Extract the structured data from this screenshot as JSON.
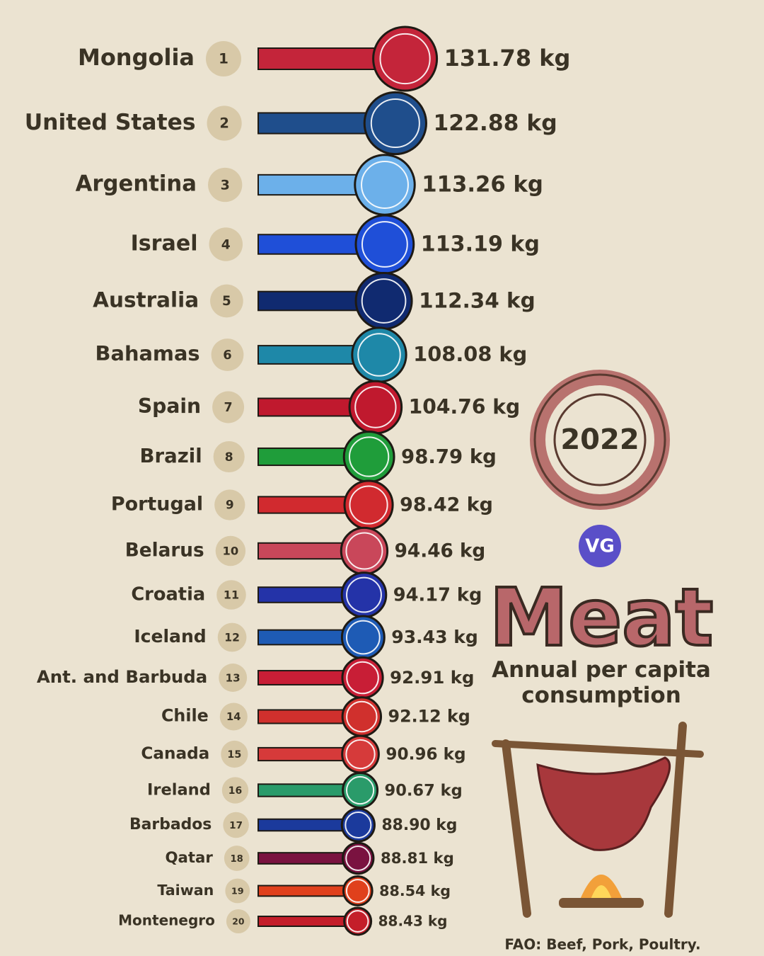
{
  "chart_data": {
    "type": "bar",
    "title": "Meat",
    "subtitle": "Annual per capita consumption",
    "year": "2022",
    "logo": "VG",
    "source": "FAO: Beef, Pork, Poultry.",
    "categories": [
      "Mongolia",
      "United States",
      "Argentina",
      "Israel",
      "Australia",
      "Bahamas",
      "Spain",
      "Brazil",
      "Portugal",
      "Belarus",
      "Croatia",
      "Iceland",
      "Ant. and Barbuda",
      "Chile",
      "Canada",
      "Ireland",
      "Barbados",
      "Qatar",
      "Taiwan",
      "Montenegro"
    ],
    "ranks": [
      1,
      2,
      3,
      4,
      5,
      6,
      7,
      8,
      9,
      10,
      11,
      12,
      13,
      14,
      15,
      16,
      17,
      18,
      19,
      20
    ],
    "values": [
      131.78,
      122.88,
      113.26,
      113.19,
      112.34,
      108.08,
      104.76,
      98.79,
      98.42,
      94.46,
      94.17,
      93.43,
      92.91,
      92.12,
      90.96,
      90.67,
      88.9,
      88.81,
      88.54,
      88.43
    ],
    "value_labels": [
      "131.78 kg",
      "122.88 kg",
      "113.26 kg",
      "113.19 kg",
      "112.34 kg",
      "108.08 kg",
      "104.76 kg",
      "98.79 kg",
      "98.42 kg",
      "94.46 kg",
      "94.17 kg",
      "93.43 kg",
      "92.91 kg",
      "92.12 kg",
      "90.96 kg",
      "90.67 kg",
      "88.90 kg",
      "88.81 kg",
      "88.54 kg",
      "88.43 kg"
    ],
    "colors": [
      "#c4253a",
      "#1f4e8c",
      "#6cb0ea",
      "#1f4fd8",
      "#102a70",
      "#1e88a8",
      "#c0192e",
      "#1f9d3a",
      "#d12a2f",
      "#c9475a",
      "#2433a8",
      "#1e5bb5",
      "#c81e36",
      "#d0302d",
      "#d63a3a",
      "#2a9b6a",
      "#1b3a9c",
      "#7a1240",
      "#e0401c",
      "#c41e2a"
    ]
  }
}
